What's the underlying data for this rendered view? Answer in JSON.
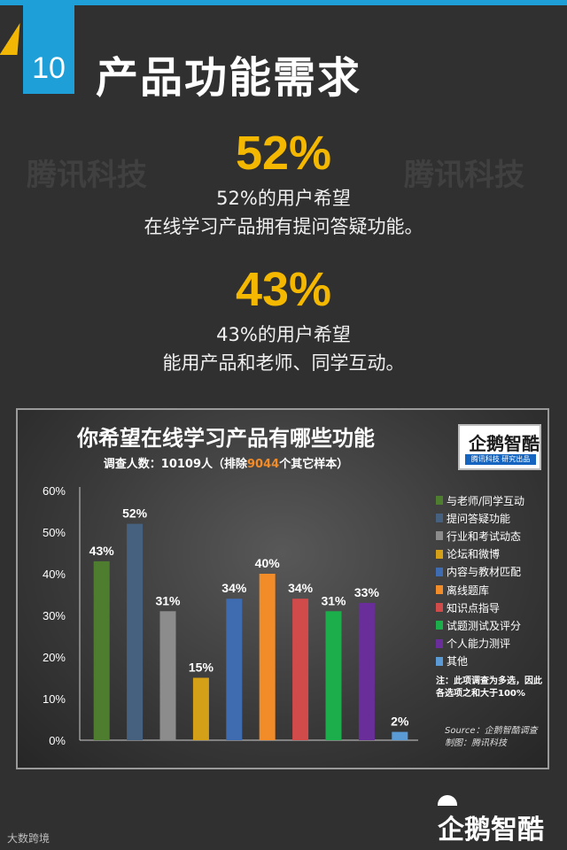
{
  "header": {
    "number": "10",
    "title": "产品功能需求"
  },
  "stats": [
    {
      "value": "52%",
      "line1": "52%的用户希望",
      "line2": "在线学习产品拥有提问答疑功能。"
    },
    {
      "value": "43%",
      "line1": "43%的用户希望",
      "line2": "能用产品和老师、同学互动。"
    }
  ],
  "watermark": "腾讯科技",
  "chart_data": {
    "type": "bar",
    "title": "你希望在线学习产品有哪些功能",
    "subtitle_prefix": "调查人数：10109人（排除",
    "subtitle_highlight": "9044",
    "subtitle_suffix": "个其它样本）",
    "categories": [
      "与老师/同学互动",
      "提问答疑功能",
      "行业和考试动态",
      "论坛和微博",
      "内容与教材匹配",
      "离线题库",
      "知识点指导",
      "试题测试及评分",
      "个人能力测评",
      "其他"
    ],
    "values": [
      43,
      52,
      31,
      15,
      34,
      40,
      34,
      31,
      33,
      2
    ],
    "value_labels": [
      "43%",
      "52%",
      "31%",
      "15%",
      "34%",
      "40%",
      "34%",
      "31%",
      "33%",
      "2%"
    ],
    "colors": [
      "#4e7d2f",
      "#45617f",
      "#8c8c8c",
      "#d4a017",
      "#3f6bb0",
      "#f28c28",
      "#d24b4b",
      "#1cae4a",
      "#6a2e9a",
      "#5b9bd5"
    ],
    "yticks": [
      "0%",
      "10%",
      "20%",
      "30%",
      "40%",
      "50%",
      "60%"
    ],
    "ylim": [
      0,
      60
    ],
    "legend_position": "right",
    "note_line1": "注：此项调查为多选，因此",
    "note_line2": "各选项之和大于100%",
    "source_line1": "Source：企鹅智酷调查",
    "source_line2": "制图：腾讯科技"
  },
  "logo": {
    "text": "企鹅智酷",
    "sub": "腾讯科技  研究出品"
  },
  "footer": {
    "left": "大数跨境",
    "brand": "企鹅智酷"
  }
}
